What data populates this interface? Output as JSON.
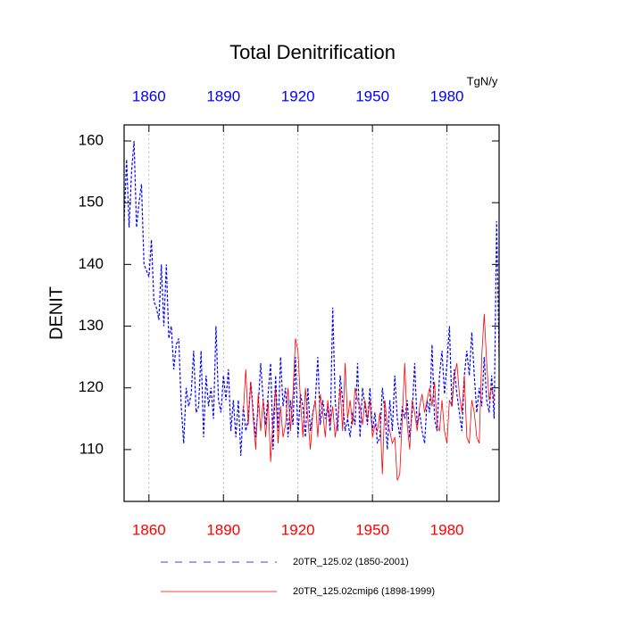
{
  "chart_data": {
    "type": "line",
    "title": "Total Denitrification",
    "units": "TgN/y",
    "y_label": "DENIT",
    "top_axis_color": "#0000ff",
    "bottom_axis_color": "#ff0000",
    "grid": true,
    "xlim": [
      1850,
      2001
    ],
    "ylim": [
      101.6,
      162.6
    ],
    "xticks": [
      1860,
      1890,
      1920,
      1950,
      1980
    ],
    "yticks": [
      110,
      120,
      130,
      140,
      150,
      160
    ],
    "x": [
      1850,
      1851,
      1852,
      1853,
      1854,
      1855,
      1856,
      1857,
      1858,
      1859,
      1860,
      1861,
      1862,
      1863,
      1864,
      1865,
      1866,
      1867,
      1868,
      1869,
      1870,
      1871,
      1872,
      1873,
      1874,
      1875,
      1876,
      1877,
      1878,
      1879,
      1880,
      1881,
      1882,
      1883,
      1884,
      1885,
      1886,
      1887,
      1888,
      1889,
      1890,
      1891,
      1892,
      1893,
      1894,
      1895,
      1896,
      1897,
      1898,
      1899,
      1900,
      1901,
      1902,
      1903,
      1904,
      1905,
      1906,
      1907,
      1908,
      1909,
      1910,
      1911,
      1912,
      1913,
      1914,
      1915,
      1916,
      1917,
      1918,
      1919,
      1920,
      1921,
      1922,
      1923,
      1924,
      1925,
      1926,
      1927,
      1928,
      1929,
      1930,
      1931,
      1932,
      1933,
      1934,
      1935,
      1936,
      1937,
      1938,
      1939,
      1940,
      1941,
      1942,
      1943,
      1944,
      1945,
      1946,
      1947,
      1948,
      1949,
      1950,
      1951,
      1952,
      1953,
      1954,
      1955,
      1956,
      1957,
      1958,
      1959,
      1960,
      1961,
      1962,
      1963,
      1964,
      1965,
      1966,
      1967,
      1968,
      1969,
      1970,
      1971,
      1972,
      1973,
      1974,
      1975,
      1976,
      1977,
      1978,
      1979,
      1980,
      1981,
      1982,
      1983,
      1984,
      1985,
      1986,
      1987,
      1988,
      1989,
      1990,
      1991,
      1992,
      1993,
      1994,
      1995,
      1996,
      1997,
      1998,
      1999,
      2000,
      2001
    ],
    "series": [
      {
        "name": "20TR_125.02 (1850-2001)",
        "color": "#0000ff",
        "dash": true,
        "values": [
          147,
          157,
          146,
          155,
          160,
          146,
          150,
          153,
          140,
          139,
          138,
          144,
          134,
          133,
          131,
          140,
          130,
          140,
          128,
          130,
          123,
          127,
          128,
          117,
          111,
          120,
          117,
          119,
          126,
          116,
          117,
          126,
          112,
          122,
          117,
          120,
          115,
          130,
          118,
          116,
          122,
          118,
          123,
          113,
          118,
          112,
          118,
          109,
          117,
          113,
          115,
          121,
          116,
          112,
          117,
          124,
          118,
          114,
          119,
          124,
          110,
          122,
          113,
          125,
          117,
          120,
          112,
          118,
          114,
          125,
          112,
          119,
          117,
          112,
          120,
          113,
          116,
          118,
          125,
          114,
          118,
          115,
          117,
          113,
          133,
          118,
          113,
          122,
          118,
          113,
          115,
          112,
          116,
          114,
          124,
          112,
          120,
          117,
          114,
          120,
          113,
          116,
          111,
          112,
          120,
          116,
          110,
          118,
          113,
          122,
          115,
          112,
          117,
          115,
          118,
          112,
          116,
          124,
          114,
          116,
          113,
          111,
          118,
          116,
          127,
          115,
          113,
          122,
          126,
          119,
          124,
          130,
          117,
          123,
          119,
          116,
          113,
          122,
          126,
          122,
          129,
          122,
          116,
          120,
          117,
          125,
          118,
          116,
          122,
          115,
          147,
          125
        ]
      },
      {
        "name": "20TR_125.02cmip6 (1898-1999)",
        "color": "#ff0000",
        "dash": false,
        "values": [
          null,
          null,
          null,
          null,
          null,
          null,
          null,
          null,
          null,
          null,
          null,
          null,
          null,
          null,
          null,
          null,
          null,
          null,
          null,
          null,
          null,
          null,
          null,
          null,
          null,
          null,
          null,
          null,
          null,
          null,
          null,
          null,
          null,
          null,
          null,
          null,
          null,
          null,
          null,
          null,
          null,
          null,
          null,
          null,
          null,
          null,
          null,
          null,
          116,
          123,
          114,
          121,
          115,
          110,
          119,
          113,
          118,
          112,
          118,
          108,
          115,
          120,
          111,
          117,
          112,
          114,
          120,
          113,
          119,
          128,
          126,
          118,
          112,
          120,
          115,
          110,
          116,
          118,
          112,
          119,
          116,
          112,
          118,
          114,
          117,
          112,
          115,
          120,
          113,
          124,
          115,
          118,
          114,
          120,
          118,
          117,
          114,
          118,
          115,
          118,
          112,
          114,
          113,
          116,
          106,
          118,
          114,
          113,
          111,
          112,
          105,
          106,
          115,
          124,
          114,
          110,
          118,
          116,
          113,
          117,
          119,
          116,
          118,
          120,
          117,
          121,
          114,
          113,
          118,
          113,
          111,
          118,
          117,
          122,
          124,
          119,
          116,
          122,
          112,
          111,
          118,
          116,
          112,
          111,
          125,
          132,
          124,
          118,
          120,
          118,
          null,
          null
        ]
      }
    ]
  }
}
